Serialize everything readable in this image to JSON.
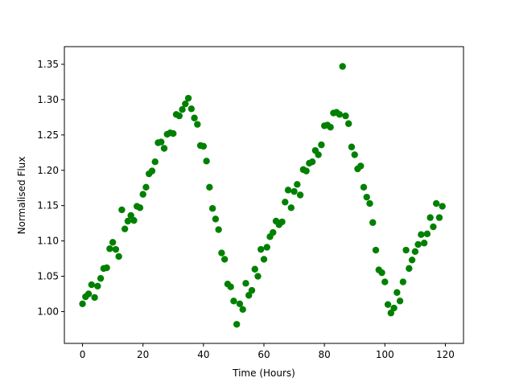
{
  "chart_data": {
    "type": "scatter",
    "title": "",
    "xlabel": "Time (Hours)",
    "ylabel": "Normalised Flux",
    "xlim": [
      -6,
      126
    ],
    "ylim": [
      0.955,
      1.375
    ],
    "xticks": [
      0,
      20,
      40,
      60,
      80,
      100,
      120
    ],
    "yticks": [
      1.0,
      1.05,
      1.1,
      1.15,
      1.2,
      1.25,
      1.3,
      1.35
    ],
    "ytick_labels": [
      "1.00",
      "1.05",
      "1.10",
      "1.15",
      "1.20",
      "1.25",
      "1.30",
      "1.35"
    ],
    "grid": false,
    "marker_color": "#008000",
    "series": [
      {
        "x": [
          0,
          1,
          2,
          3,
          4,
          5,
          6,
          7,
          8,
          9,
          10,
          11,
          12,
          13,
          14,
          15,
          16,
          17,
          18,
          19,
          20,
          21,
          22,
          23,
          24,
          25,
          26,
          27,
          28,
          29,
          30,
          31,
          32,
          33,
          34,
          35,
          36,
          37,
          38,
          39,
          40,
          41,
          42,
          43,
          44,
          45,
          46,
          47,
          48,
          49,
          50,
          51,
          52,
          53,
          54,
          55,
          56,
          57,
          58,
          59,
          60,
          61,
          62,
          63,
          64,
          65,
          66,
          67,
          68,
          69,
          70,
          71,
          72,
          73,
          74,
          75,
          76,
          77,
          78,
          79,
          80,
          81,
          82,
          83,
          84,
          85,
          86,
          87,
          88,
          89,
          90,
          91,
          92,
          93,
          94,
          95,
          96,
          97,
          98,
          99,
          100,
          101,
          102,
          103,
          104,
          105,
          106,
          107,
          108,
          109,
          110,
          111,
          112,
          113,
          114,
          115,
          116,
          117,
          118,
          119
        ],
        "y": [
          1.011,
          1.021,
          1.025,
          1.038,
          1.02,
          1.036,
          1.047,
          1.061,
          1.062,
          1.089,
          1.098,
          1.088,
          1.078,
          1.144,
          1.117,
          1.128,
          1.136,
          1.129,
          1.149,
          1.147,
          1.166,
          1.176,
          1.195,
          1.199,
          1.212,
          1.239,
          1.24,
          1.231,
          1.251,
          1.253,
          1.252,
          1.279,
          1.277,
          1.286,
          1.294,
          1.302,
          1.287,
          1.274,
          1.265,
          1.235,
          1.234,
          1.213,
          1.176,
          1.146,
          1.131,
          1.116,
          1.083,
          1.074,
          1.039,
          1.035,
          1.015,
          0.982,
          1.011,
          1.003,
          1.04,
          1.023,
          1.03,
          1.06,
          1.05,
          1.088,
          1.074,
          1.091,
          1.106,
          1.112,
          1.128,
          1.123,
          1.127,
          1.155,
          1.172,
          1.147,
          1.17,
          1.18,
          1.165,
          1.201,
          1.199,
          1.21,
          1.212,
          1.228,
          1.222,
          1.236,
          1.263,
          1.264,
          1.261,
          1.281,
          1.282,
          1.279,
          1.347,
          1.277,
          1.266,
          1.233,
          1.222,
          1.202,
          1.206,
          1.176,
          1.162,
          1.153,
          1.126,
          1.087,
          1.059,
          1.055,
          1.042,
          1.01,
          0.998,
          1.005,
          1.027,
          1.015,
          1.042,
          1.087,
          1.061,
          1.073,
          1.085,
          1.095,
          1.109,
          1.097,
          1.11,
          1.133,
          1.12,
          1.153,
          1.133,
          1.149
        ]
      }
    ]
  }
}
